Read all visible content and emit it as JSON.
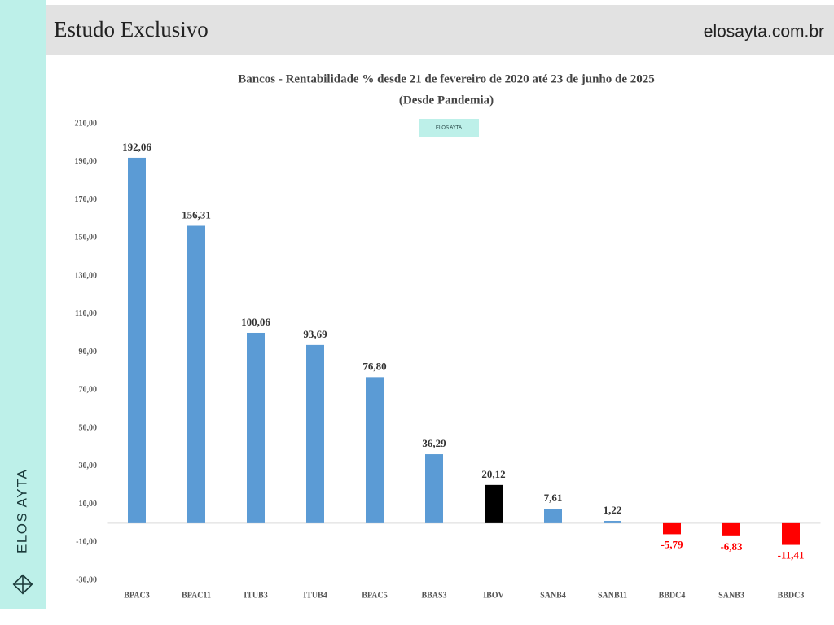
{
  "header": {
    "title": "Estudo Exclusivo",
    "site": "elosayta.com.br"
  },
  "brand": {
    "side_text": "ELOS AYTA"
  },
  "chart_data": {
    "type": "bar",
    "title": "Bancos - Rentabilidade % desde 21 de fevereiro de 2020 até 23 de junho de  2025",
    "subtitle": "(Desde Pandemia)",
    "categories": [
      "BPAC3",
      "BPAC11",
      "ITUB3",
      "ITUB4",
      "BPAC5",
      "BBAS3",
      "IBOV",
      "SANB4",
      "SANB11",
      "BBDC4",
      "SANB3",
      "BBDC3"
    ],
    "values": [
      192.06,
      156.31,
      100.06,
      93.69,
      76.8,
      36.29,
      20.12,
      7.61,
      1.22,
      -5.79,
      -6.83,
      -11.41
    ],
    "value_labels": [
      "192,06",
      "156,31",
      "100,06",
      "93,69",
      "76,80",
      "36,29",
      "20,12",
      "7,61",
      "1,22",
      "-5,79",
      "-6,83",
      "-11,41"
    ],
    "colors": [
      "#5b9bd5",
      "#5b9bd5",
      "#5b9bd5",
      "#5b9bd5",
      "#5b9bd5",
      "#5b9bd5",
      "#000000",
      "#5b9bd5",
      "#5b9bd5",
      "#ff0000",
      "#ff0000",
      "#ff0000"
    ],
    "ylim": [
      -30,
      210
    ],
    "yticks": [
      {
        "value": 210,
        "label": "210,00"
      },
      {
        "value": 190,
        "label": "190,00"
      },
      {
        "value": 170,
        "label": "170,00"
      },
      {
        "value": 150,
        "label": "150,00"
      },
      {
        "value": 130,
        "label": "130,00"
      },
      {
        "value": 110,
        "label": "110,00"
      },
      {
        "value": 90,
        "label": "90,00"
      },
      {
        "value": 70,
        "label": "70,00"
      },
      {
        "value": 50,
        "label": "50,00"
      },
      {
        "value": 30,
        "label": "30,00"
      },
      {
        "value": 10,
        "label": "10,00"
      },
      {
        "value": -10,
        "label": "-10,00"
      },
      {
        "value": -30,
        "label": "-30,00"
      }
    ],
    "grid": false
  }
}
